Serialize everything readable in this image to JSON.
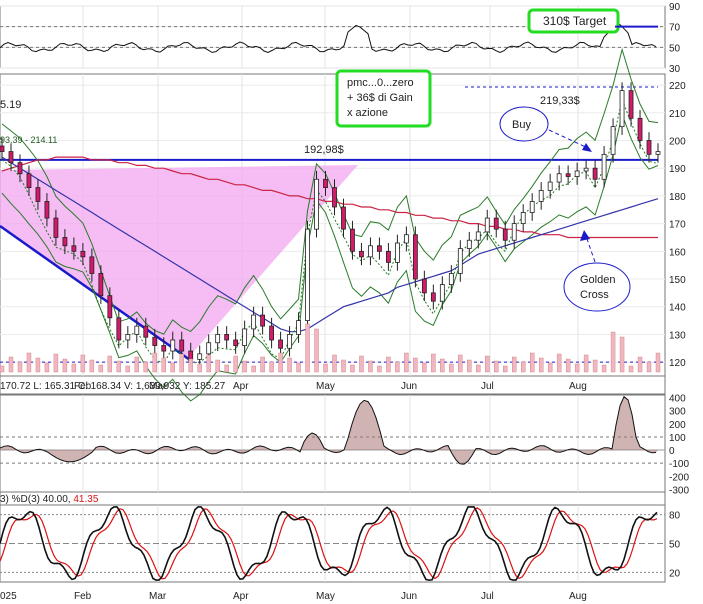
{
  "chart_data": {
    "type": "line",
    "months": [
      "Feb",
      "Mar",
      "Apr",
      "May",
      "Jun",
      "Jul",
      "Aug"
    ],
    "year_label": "025",
    "top_panel": {
      "ticks": [
        90,
        70,
        50,
        30
      ],
      "ylim": [
        30,
        90
      ],
      "target_label": "310$ Target"
    },
    "main_panel": {
      "ticks": [
        220,
        210,
        200,
        190,
        180,
        170,
        160,
        150,
        140,
        130,
        120
      ],
      "ylim": [
        115,
        224
      ],
      "upper_header": "5.19",
      "legend_fragment": "93.39 - 214.11",
      "footer": "170.72  L: 165.31  C: 168.34  V: 1,639,932  Y: 185.27",
      "annotations": {
        "pmc": [
          "pmc...0...zero",
          "+ 36$ di Gain",
          "x azione"
        ],
        "level_192": "192,98$",
        "level_219": "219,33$",
        "buy": "Buy",
        "golden_cross": [
          "Golden",
          "Cross"
        ]
      },
      "levels": {
        "support": 120,
        "resistance": 193,
        "top": 219.33
      },
      "series": {
        "close": [
          196,
          192,
          188,
          183,
          178,
          172,
          165,
          162,
          160,
          158,
          152,
          144,
          136,
          128,
          130,
          133,
          129,
          126,
          124,
          128,
          124,
          121,
          123,
          127,
          130,
          128,
          126,
          132,
          137,
          133,
          128,
          125,
          130,
          135,
          168,
          186,
          183,
          176,
          168,
          160,
          158,
          162,
          160,
          156,
          163,
          166,
          150,
          145,
          142,
          148,
          152,
          161,
          164,
          167,
          172,
          168,
          164,
          170,
          174,
          178,
          182,
          185,
          188,
          187,
          189,
          190,
          186,
          195,
          205,
          218,
          208,
          200,
          195,
          196
        ],
        "sma50": [
          194,
          192,
          190,
          188,
          186,
          184,
          182,
          180,
          178,
          176,
          174,
          172,
          170,
          168,
          166,
          164,
          162,
          160,
          158,
          156,
          154,
          152,
          150,
          148,
          146,
          144,
          142,
          140,
          138,
          136,
          134,
          132,
          131,
          131,
          132,
          134,
          136,
          138,
          140,
          141,
          142,
          143,
          144,
          145,
          147,
          148,
          149,
          150,
          151,
          152,
          153,
          155,
          157,
          159,
          160,
          161,
          162,
          163,
          164,
          165,
          166,
          167,
          168,
          169,
          170,
          171,
          172,
          173,
          174,
          175,
          176,
          177,
          178,
          179
        ],
        "sma200": [
          189,
          190,
          191,
          192,
          193,
          193,
          194,
          194,
          194,
          194,
          193,
          193,
          193,
          192,
          192,
          191,
          191,
          190,
          190,
          189,
          188,
          188,
          187,
          186,
          186,
          185,
          184,
          184,
          183,
          182,
          182,
          181,
          180,
          180,
          179,
          179,
          178,
          178,
          177,
          177,
          176,
          176,
          175,
          175,
          174,
          174,
          173,
          173,
          172,
          172,
          171,
          171,
          170,
          170,
          169,
          169,
          168,
          168,
          167,
          167,
          166,
          166,
          166,
          165,
          165,
          165,
          165,
          165,
          165,
          165,
          165,
          165,
          165,
          165
        ]
      }
    },
    "macd_panel": {
      "ticks": [
        400,
        300,
        200,
        100,
        0,
        -100,
        -200,
        -300
      ],
      "ylim": [
        -320,
        420
      ]
    },
    "stoch_panel": {
      "label_prefix": "3) %D(3) 40.00,",
      "label_value": "41.35",
      "ticks": [
        80,
        50,
        20
      ],
      "ylim": [
        10,
        90
      ]
    }
  }
}
